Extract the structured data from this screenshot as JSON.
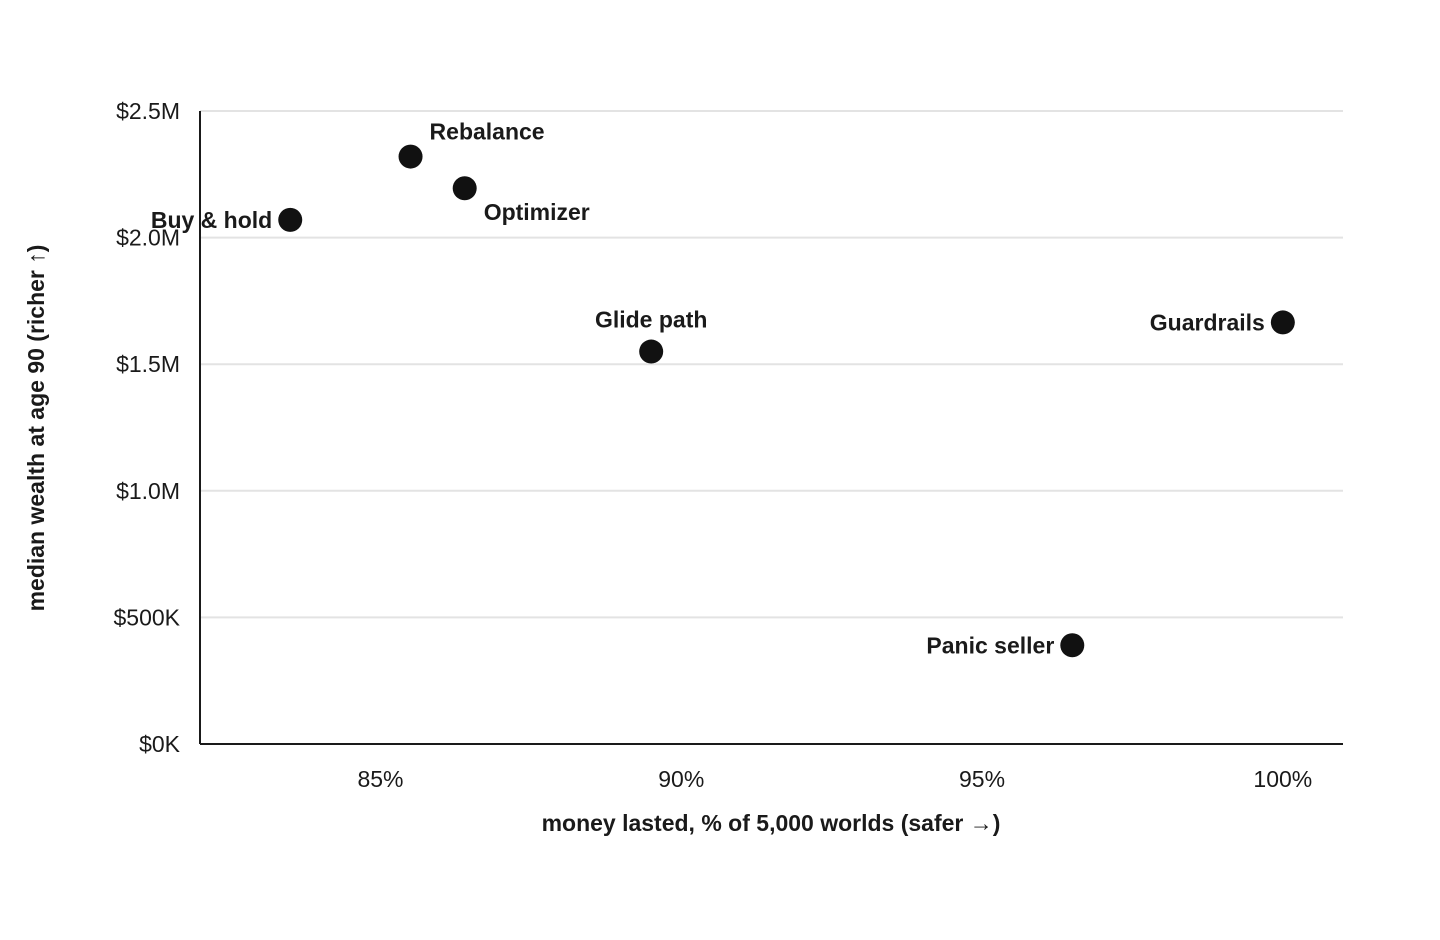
{
  "chart_data": {
    "type": "scatter",
    "xlabel": "money lasted, % of 5,000 worlds (safer →)",
    "ylabel": "median wealth at age 90 (richer ↑)",
    "xlim": [
      82,
      101
    ],
    "ylim": [
      0,
      2500000
    ],
    "x_ticks": [
      85,
      90,
      95,
      100
    ],
    "x_tick_labels": [
      "85%",
      "90%",
      "95%",
      "100%"
    ],
    "y_ticks": [
      0,
      500000,
      1000000,
      1500000,
      2000000,
      2500000
    ],
    "y_tick_labels": [
      "$0K",
      "$500K",
      "$1.0M",
      "$1.5M",
      "$2.0M",
      "$2.5M"
    ],
    "grid": "horizontal",
    "marker_color": "#111111",
    "points": [
      {
        "label": "Buy & hold",
        "x": 83.5,
        "y": 2070000,
        "label_pos": "left"
      },
      {
        "label": "Rebalance",
        "x": 85.5,
        "y": 2320000,
        "label_pos": "above-right"
      },
      {
        "label": "Optimizer",
        "x": 86.4,
        "y": 2195000,
        "label_pos": "below-right"
      },
      {
        "label": "Glide path",
        "x": 89.5,
        "y": 1550000,
        "label_pos": "above"
      },
      {
        "label": "Panic seller",
        "x": 96.5,
        "y": 390000,
        "label_pos": "left"
      },
      {
        "label": "Guardrails",
        "x": 100.0,
        "y": 1665000,
        "label_pos": "left"
      }
    ]
  }
}
